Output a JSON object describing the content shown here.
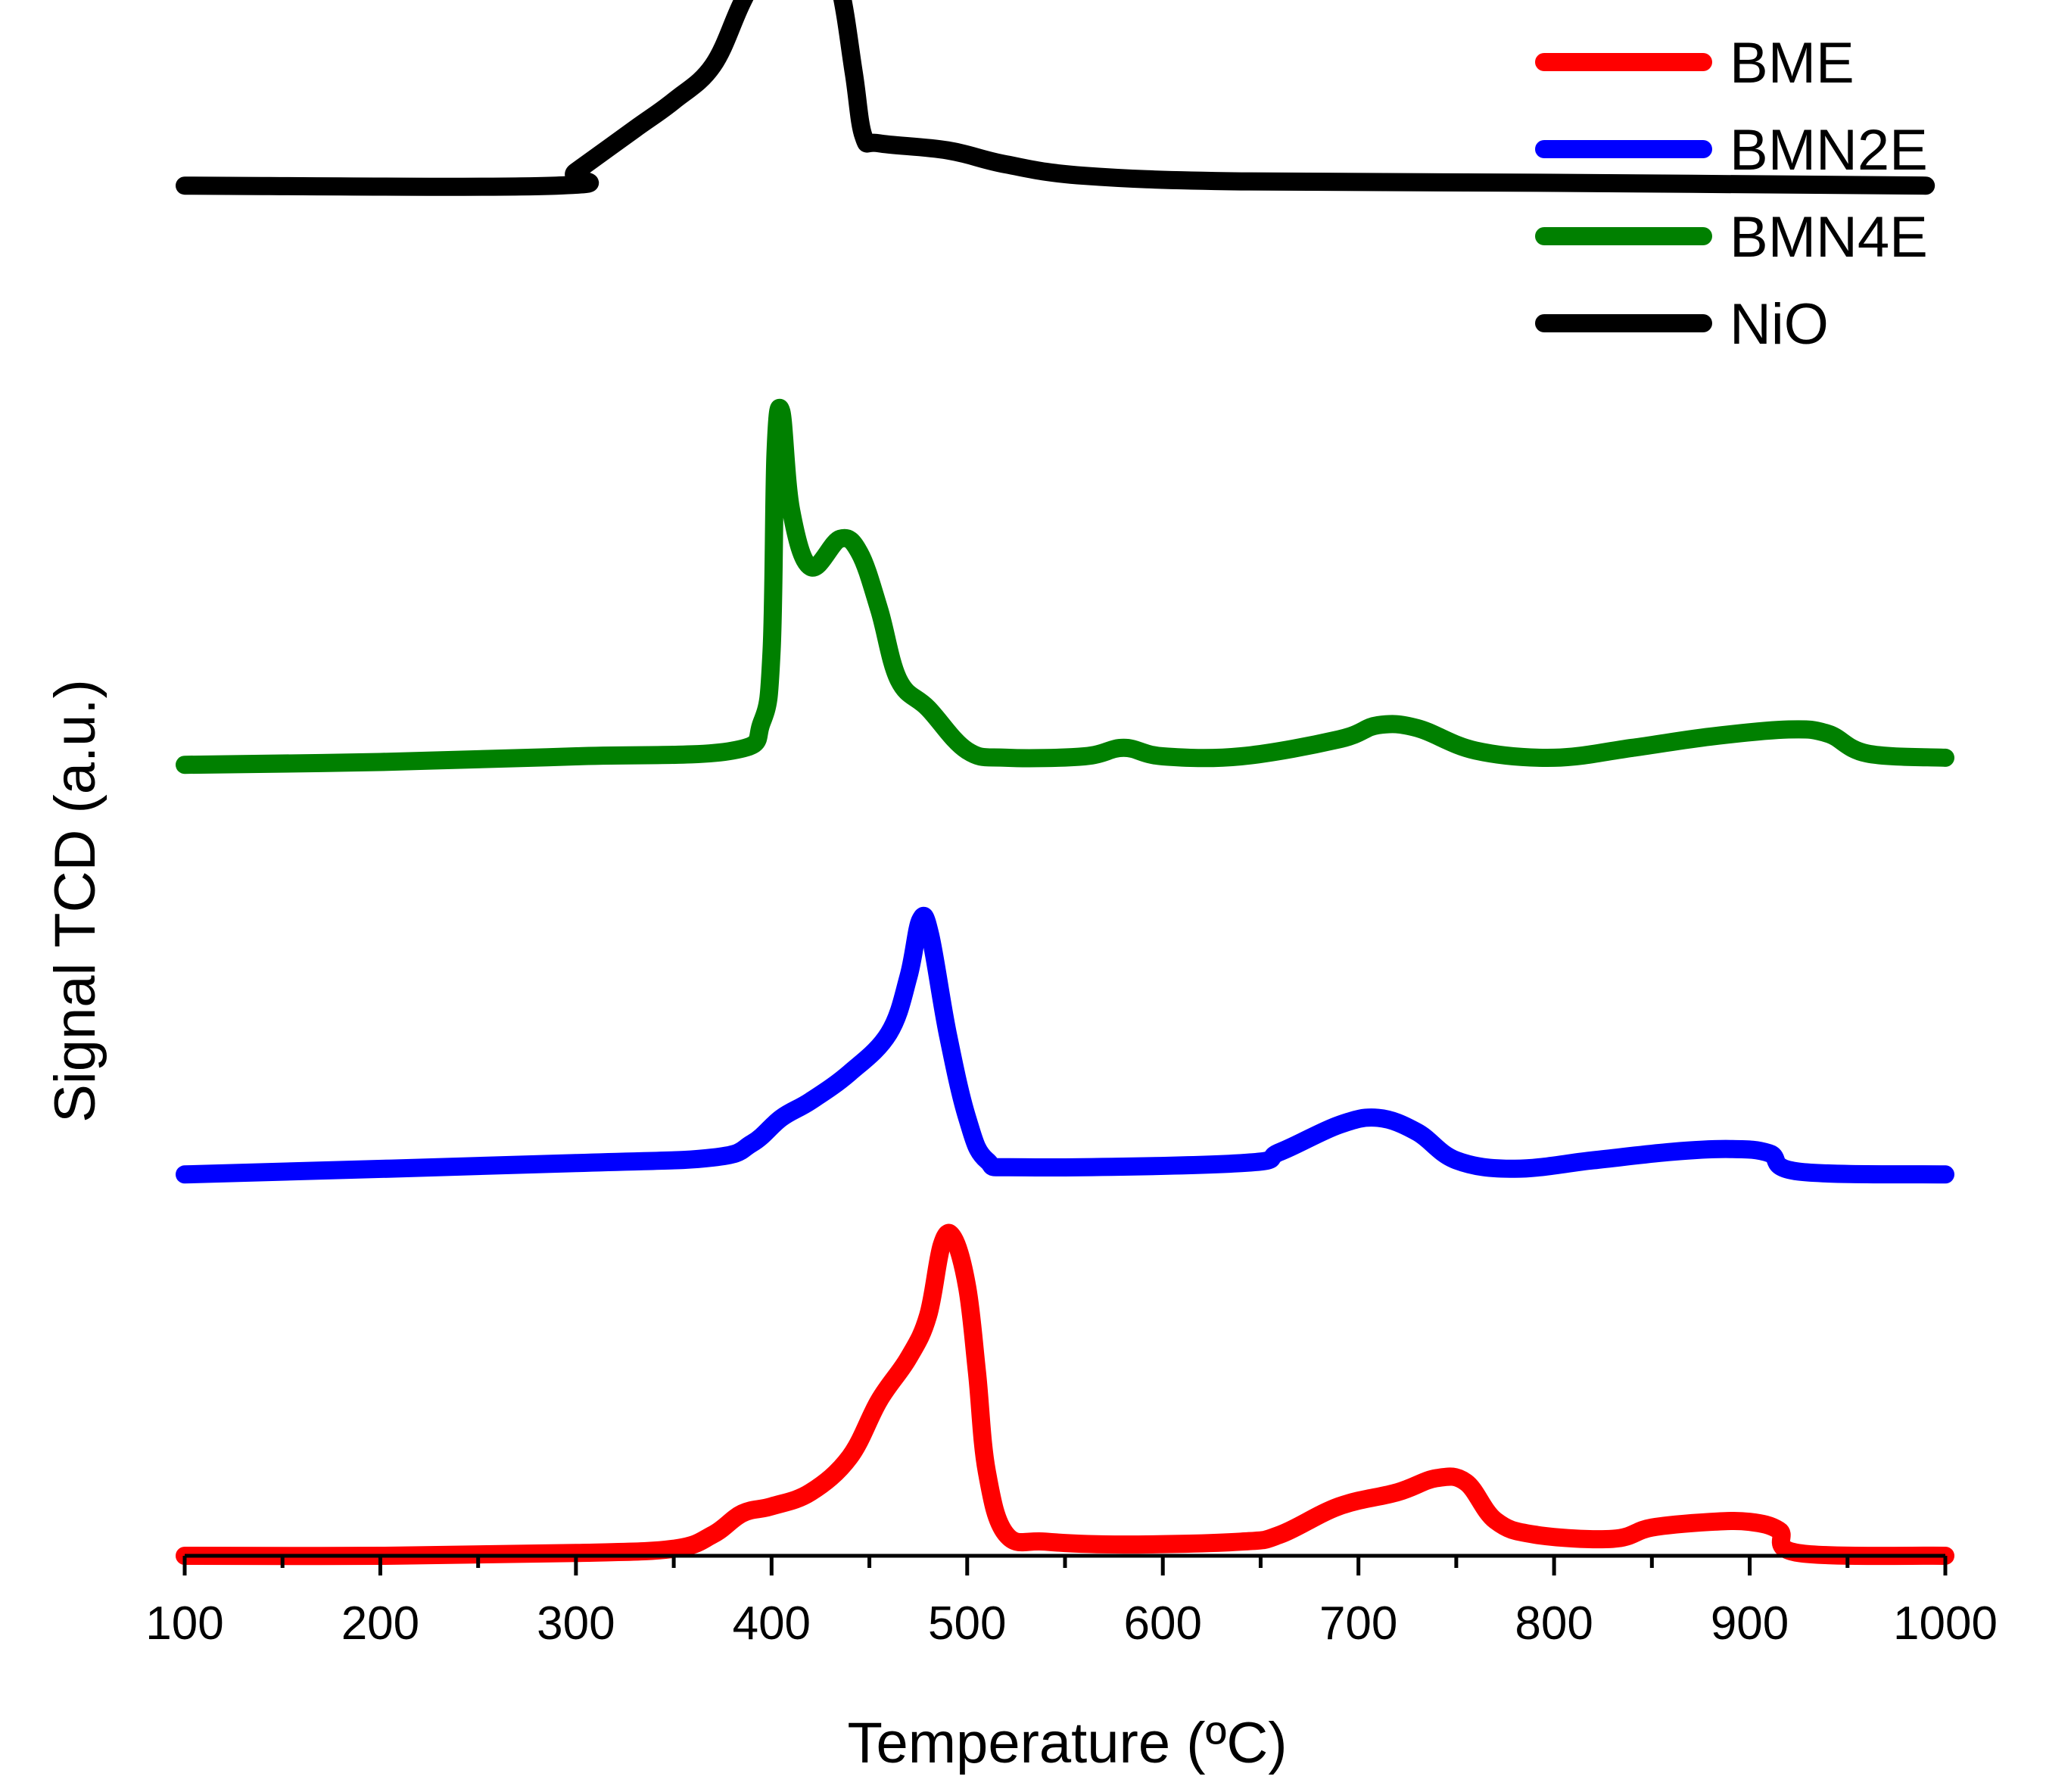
{
  "chart_data": {
    "type": "line",
    "title": "",
    "xlabel": "Temperature (ºC)",
    "ylabel": "Signal TCD (a.u.)",
    "xlim": [
      100,
      1000
    ],
    "ylim": [
      0,
      1.08
    ],
    "xticks": [
      100,
      200,
      300,
      400,
      500,
      600,
      700,
      800,
      900,
      1000
    ],
    "xtick_labels": [
      "100",
      "200",
      "300",
      "400",
      "500",
      "600",
      "700",
      "800",
      "900",
      "1000"
    ],
    "xminor": [
      150,
      250,
      350,
      450,
      550,
      650,
      750,
      850,
      950
    ],
    "grid": false,
    "legend_position": "top-right",
    "series": [
      {
        "name": "BME",
        "color": "#ff0000",
        "points": [
          [
            100,
            0.0
          ],
          [
            200,
            0.0
          ],
          [
            300,
            0.002
          ],
          [
            350,
            0.005
          ],
          [
            370,
            0.015
          ],
          [
            385,
            0.03
          ],
          [
            400,
            0.035
          ],
          [
            420,
            0.045
          ],
          [
            440,
            0.07
          ],
          [
            455,
            0.11
          ],
          [
            470,
            0.14
          ],
          [
            480,
            0.17
          ],
          [
            487,
            0.22
          ],
          [
            493,
            0.225
          ],
          [
            500,
            0.19
          ],
          [
            505,
            0.13
          ],
          [
            510,
            0.06
          ],
          [
            520,
            0.015
          ],
          [
            540,
            0.01
          ],
          [
            580,
            0.008
          ],
          [
            640,
            0.01
          ],
          [
            660,
            0.015
          ],
          [
            690,
            0.035
          ],
          [
            720,
            0.045
          ],
          [
            740,
            0.055
          ],
          [
            755,
            0.052
          ],
          [
            770,
            0.025
          ],
          [
            790,
            0.015
          ],
          [
            830,
            0.012
          ],
          [
            850,
            0.02
          ],
          [
            880,
            0.024
          ],
          [
            900,
            0.024
          ],
          [
            915,
            0.018
          ],
          [
            925,
            0.002
          ],
          [
            1000,
            0.0
          ]
        ]
      },
      {
        "name": "BMN2E",
        "color": "#0000ff",
        "points": [
          [
            100,
            0.0
          ],
          [
            300,
            0.008
          ],
          [
            370,
            0.012
          ],
          [
            390,
            0.022
          ],
          [
            405,
            0.04
          ],
          [
            420,
            0.052
          ],
          [
            440,
            0.072
          ],
          [
            460,
            0.1
          ],
          [
            470,
            0.14
          ],
          [
            476,
            0.18
          ],
          [
            481,
            0.17
          ],
          [
            490,
            0.1
          ],
          [
            500,
            0.04
          ],
          [
            510,
            0.01
          ],
          [
            530,
            0.005
          ],
          [
            640,
            0.008
          ],
          [
            660,
            0.016
          ],
          [
            690,
            0.035
          ],
          [
            710,
            0.04
          ],
          [
            730,
            0.03
          ],
          [
            750,
            0.01
          ],
          [
            780,
            0.004
          ],
          [
            820,
            0.01
          ],
          [
            860,
            0.016
          ],
          [
            890,
            0.018
          ],
          [
            910,
            0.015
          ],
          [
            925,
            0.002
          ],
          [
            1000,
            0.0
          ]
        ]
      },
      {
        "name": "BMN4E",
        "color": "#008000",
        "points": [
          [
            100,
            0.0
          ],
          [
            200,
            0.002
          ],
          [
            300,
            0.006
          ],
          [
            380,
            0.01
          ],
          [
            395,
            0.03
          ],
          [
            400,
            0.08
          ],
          [
            402,
            0.22
          ],
          [
            405,
            0.25
          ],
          [
            410,
            0.18
          ],
          [
            420,
            0.14
          ],
          [
            435,
            0.16
          ],
          [
            445,
            0.15
          ],
          [
            455,
            0.11
          ],
          [
            465,
            0.06
          ],
          [
            480,
            0.04
          ],
          [
            500,
            0.01
          ],
          [
            520,
            0.005
          ],
          [
            560,
            0.006
          ],
          [
            580,
            0.012
          ],
          [
            600,
            0.006
          ],
          [
            640,
            0.006
          ],
          [
            690,
            0.018
          ],
          [
            710,
            0.028
          ],
          [
            730,
            0.026
          ],
          [
            760,
            0.01
          ],
          [
            800,
            0.005
          ],
          [
            840,
            0.012
          ],
          [
            880,
            0.02
          ],
          [
            920,
            0.025
          ],
          [
            940,
            0.022
          ],
          [
            960,
            0.008
          ],
          [
            1000,
            0.005
          ]
        ]
      },
      {
        "name": "NiO",
        "color": "#000000",
        "points": [
          [
            100,
            0.0
          ],
          [
            290,
            0.0
          ],
          [
            300,
            0.01
          ],
          [
            330,
            0.04
          ],
          [
            350,
            0.06
          ],
          [
            370,
            0.085
          ],
          [
            385,
            0.13
          ],
          [
            400,
            0.17
          ],
          [
            410,
            0.192
          ],
          [
            418,
            0.195
          ],
          [
            425,
            0.18
          ],
          [
            435,
            0.14
          ],
          [
            442,
            0.08
          ],
          [
            447,
            0.035
          ],
          [
            455,
            0.03
          ],
          [
            490,
            0.025
          ],
          [
            520,
            0.015
          ],
          [
            560,
            0.007
          ],
          [
            640,
            0.003
          ],
          [
            800,
            0.002
          ],
          [
            990,
            0.0
          ]
        ]
      }
    ],
    "curve_offsets": {
      "BME": 0.0,
      "BMN2E": 0.27,
      "BMN4E": 0.56,
      "NiO": 0.97
    }
  }
}
